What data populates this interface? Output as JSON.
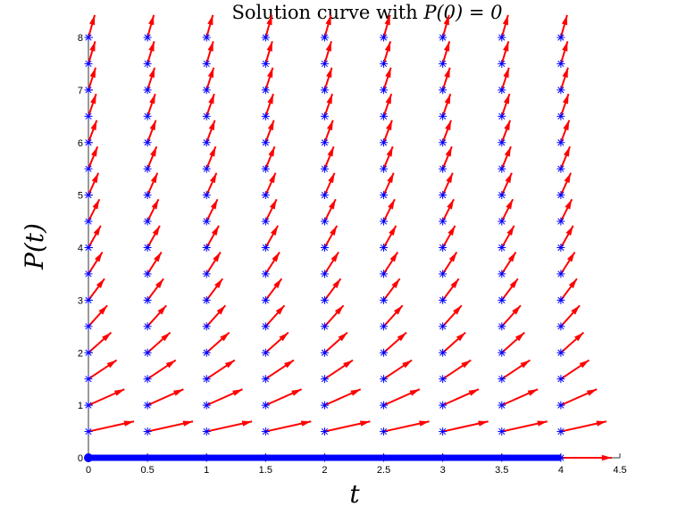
{
  "chart_data": {
    "type": "quiver",
    "title_plain": "Solution curve with ",
    "title_math": "P(0) = 0",
    "xlabel": "t",
    "ylabel": "P(t)",
    "xlim": [
      0,
      4.5
    ],
    "ylim": [
      0,
      8
    ],
    "x_ticks": [
      0,
      0.5,
      1,
      1.5,
      2,
      2.5,
      3,
      3.5,
      4,
      4.5
    ],
    "x_tick_labels": [
      "0",
      "0.5",
      "1",
      "1.5",
      "2",
      "2.5",
      "3",
      "3.5",
      "4",
      "4.5"
    ],
    "y_ticks": [
      0,
      1,
      2,
      3,
      4,
      5,
      6,
      7,
      8
    ],
    "y_tick_labels": [
      "0",
      "1",
      "2",
      "3",
      "4",
      "5",
      "6",
      "7",
      "8"
    ],
    "grid": false,
    "box": false,
    "field": {
      "t_values": [
        0,
        0.5,
        1,
        1.5,
        2,
        2.5,
        3,
        3.5,
        4
      ],
      "p_values": [
        0,
        0.5,
        1,
        1.5,
        2,
        2.5,
        3,
        3.5,
        4,
        4.5,
        5,
        5.5,
        6,
        6.5,
        7,
        7.5,
        8
      ],
      "derivative": "dP/dt = P",
      "arrow_color": "#ff0000",
      "marker": "asterisk",
      "marker_color": "#0000ff"
    },
    "solution": {
      "t": [
        0,
        4
      ],
      "p": [
        0,
        0
      ],
      "color": "#0000ff",
      "start_marker": "filled-circle"
    }
  }
}
